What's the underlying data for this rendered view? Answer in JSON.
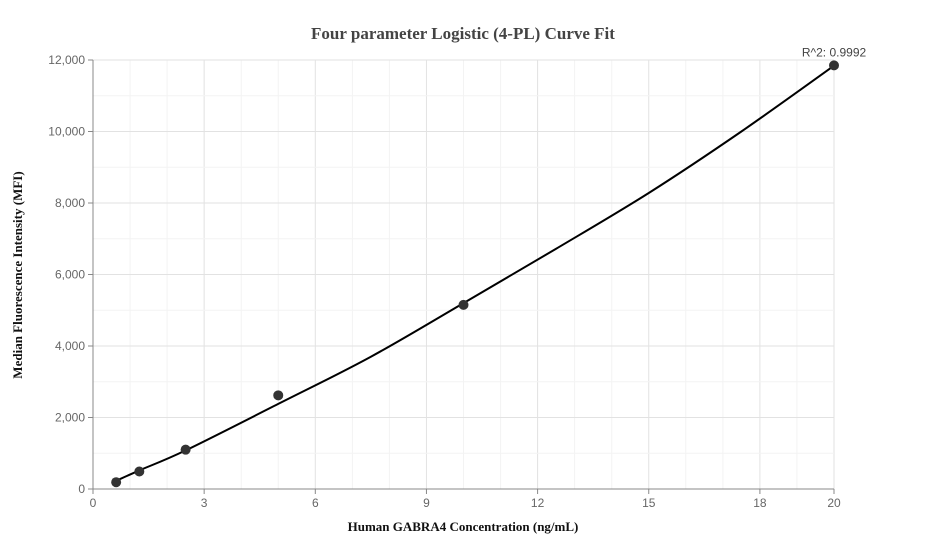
{
  "chart_data": {
    "type": "scatter",
    "title": "Four parameter Logistic (4-PL) Curve Fit",
    "xlabel": "Human GABRA4 Concentration (ng/mL)",
    "ylabel": "Median Fluorescence Intensity (MFI)",
    "xlim": [
      0,
      20
    ],
    "ylim": [
      0,
      12000
    ],
    "x_ticks": [
      0,
      3,
      6,
      9,
      12,
      15,
      18,
      20
    ],
    "x_tick_labels": [
      "0",
      "3",
      "6",
      "9",
      "12",
      "15",
      "18",
      "20"
    ],
    "y_ticks": [
      0,
      2000,
      4000,
      6000,
      8000,
      10000,
      12000
    ],
    "y_tick_labels": [
      "0",
      "2,000",
      "4,000",
      "6,000",
      "8,000",
      "10,000",
      "12,000"
    ],
    "grid": true,
    "annotation": "R^2: 0.9992",
    "colors": {
      "points": "#333333",
      "curve": "#000000",
      "grid": "#e6e6e6",
      "axis": "#888888"
    },
    "points": [
      {
        "x": 0.625,
        "y": 190
      },
      {
        "x": 1.25,
        "y": 490
      },
      {
        "x": 2.5,
        "y": 1100
      },
      {
        "x": 5,
        "y": 2620
      },
      {
        "x": 10,
        "y": 5150
      },
      {
        "x": 20,
        "y": 11850
      }
    ],
    "curve": [
      {
        "x": 0.625,
        "y": 230
      },
      {
        "x": 1.25,
        "y": 520
      },
      {
        "x": 2.5,
        "y": 1080
      },
      {
        "x": 5,
        "y": 2380
      },
      {
        "x": 7.5,
        "y": 3700
      },
      {
        "x": 10,
        "y": 5200
      },
      {
        "x": 12.5,
        "y": 6720
      },
      {
        "x": 15,
        "y": 8280
      },
      {
        "x": 17.5,
        "y": 10000
      },
      {
        "x": 20,
        "y": 11840
      }
    ]
  }
}
